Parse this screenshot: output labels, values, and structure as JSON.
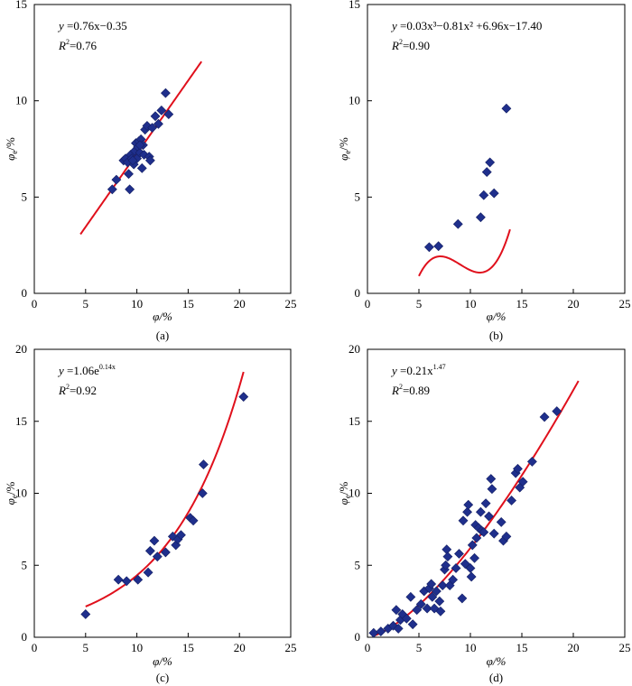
{
  "chart_data": [
    {
      "id": "a",
      "type": "scatter",
      "caption": "(a)",
      "xlabel": "φ/%",
      "ylabel": "φ",
      "ylabel_sub": "e",
      "ylabel_suffix": "/%",
      "xlim": [
        0,
        25
      ],
      "ylim": [
        0,
        15
      ],
      "xticks": [
        0,
        5,
        10,
        15,
        20,
        25
      ],
      "yticks": [
        0,
        5,
        10,
        15
      ],
      "equation": {
        "lhs": "y",
        "rhs": " =0.76x−0.35",
        "r2_label": "R",
        "r2_exp": "2",
        "r2_value": "=0.76"
      },
      "fit": {
        "kind": "linear",
        "a": 0.76,
        "b": -0.35,
        "x_range": [
          4.5,
          16.3
        ]
      },
      "points": [
        [
          7.6,
          5.4
        ],
        [
          8.0,
          5.9
        ],
        [
          8.7,
          6.9
        ],
        [
          8.9,
          7.0
        ],
        [
          9.1,
          6.8
        ],
        [
          9.2,
          6.2
        ],
        [
          9.3,
          5.4
        ],
        [
          9.4,
          7.2
        ],
        [
          9.5,
          7.0
        ],
        [
          9.7,
          6.7
        ],
        [
          9.8,
          7.4
        ],
        [
          9.9,
          7.8
        ],
        [
          10.0,
          7.0
        ],
        [
          10.1,
          7.6
        ],
        [
          10.2,
          7.9
        ],
        [
          10.3,
          7.3
        ],
        [
          10.4,
          8.0
        ],
        [
          10.5,
          6.5
        ],
        [
          10.6,
          7.7
        ],
        [
          10.7,
          7.2
        ],
        [
          10.8,
          8.5
        ],
        [
          11.0,
          8.7
        ],
        [
          11.2,
          7.1
        ],
        [
          11.3,
          6.9
        ],
        [
          11.5,
          8.6
        ],
        [
          11.8,
          9.2
        ],
        [
          12.1,
          8.8
        ],
        [
          12.4,
          9.5
        ],
        [
          12.8,
          10.4
        ],
        [
          13.1,
          9.3
        ],
        [
          10.3,
          7.7
        ],
        [
          9.6,
          6.9
        ]
      ]
    },
    {
      "id": "b",
      "type": "scatter",
      "caption": "(b)",
      "xlabel": "φ/%",
      "ylabel": "φ",
      "ylabel_sub": "e",
      "ylabel_suffix": "/%",
      "xlim": [
        0,
        25
      ],
      "ylim": [
        0,
        15
      ],
      "xticks": [
        0,
        5,
        10,
        15,
        20,
        25
      ],
      "yticks": [
        0,
        5,
        10,
        15
      ],
      "equation": {
        "lhs": "y",
        "rhs": " =0.03x³−0.81x² +6.96x−17.40",
        "r2_label": "R",
        "r2_exp": "2",
        "r2_value": "=0.90"
      },
      "fit": {
        "kind": "cubic",
        "c3": 0.03,
        "c2": -0.81,
        "c1": 6.96,
        "c0": -17.4,
        "x_range": [
          5.0,
          13.85
        ]
      },
      "points": [
        [
          6.0,
          2.4
        ],
        [
          6.9,
          2.45
        ],
        [
          8.8,
          3.6
        ],
        [
          11.0,
          3.95
        ],
        [
          11.3,
          5.1
        ],
        [
          11.6,
          6.3
        ],
        [
          11.9,
          6.8
        ],
        [
          12.3,
          5.2
        ],
        [
          13.5,
          9.6
        ]
      ]
    },
    {
      "id": "c",
      "type": "scatter",
      "caption": "(c)",
      "xlabel": "φ/%",
      "ylabel": "φ",
      "ylabel_sub": "e",
      "ylabel_suffix": "/%",
      "xlim": [
        0,
        25
      ],
      "ylim": [
        0,
        20
      ],
      "xticks": [
        0,
        5,
        10,
        15,
        20,
        25
      ],
      "yticks": [
        0,
        5,
        10,
        15,
        20
      ],
      "equation": {
        "lhs": "y",
        "rhs": " =1.06e",
        "rhs_exp": "0.14x",
        "r2_label": "R",
        "r2_exp": "2",
        "r2_value": "=0.92"
      },
      "fit": {
        "kind": "exponential",
        "a": 1.06,
        "b": 0.14,
        "x_range": [
          5.0,
          20.4
        ]
      },
      "points": [
        [
          5.0,
          1.6
        ],
        [
          8.2,
          4.0
        ],
        [
          9.0,
          3.9
        ],
        [
          10.1,
          4.0
        ],
        [
          11.1,
          4.5
        ],
        [
          11.3,
          6.0
        ],
        [
          11.7,
          6.7
        ],
        [
          12.0,
          5.6
        ],
        [
          12.8,
          5.9
        ],
        [
          13.5,
          7.0
        ],
        [
          13.8,
          6.4
        ],
        [
          14.0,
          6.8
        ],
        [
          14.3,
          7.1
        ],
        [
          15.2,
          8.3
        ],
        [
          15.5,
          8.1
        ],
        [
          16.4,
          10.0
        ],
        [
          16.5,
          12.0
        ],
        [
          20.4,
          16.7
        ]
      ]
    },
    {
      "id": "d",
      "type": "scatter",
      "caption": "(d)",
      "xlabel": "φ/%",
      "ylabel": "φ",
      "ylabel_sub": "e",
      "ylabel_suffix": "/%",
      "xlim": [
        0,
        25
      ],
      "ylim": [
        0,
        20
      ],
      "xticks": [
        0,
        5,
        10,
        15,
        20,
        25
      ],
      "yticks": [
        0,
        5,
        10,
        15,
        20
      ],
      "equation": {
        "lhs": "y",
        "rhs": " =0.21x",
        "rhs_exp": "1.47",
        "r2_label": "R",
        "r2_exp": "2",
        "r2_value": "=0.89"
      },
      "fit": {
        "kind": "power",
        "a": 0.21,
        "b": 1.47,
        "x_range": [
          0.5,
          20.5
        ]
      },
      "points": [
        [
          0.6,
          0.3
        ],
        [
          1.3,
          0.4
        ],
        [
          2.0,
          0.6
        ],
        [
          2.5,
          0.8
        ],
        [
          2.8,
          1.9
        ],
        [
          3.0,
          0.6
        ],
        [
          3.2,
          1.2
        ],
        [
          3.4,
          1.6
        ],
        [
          3.8,
          1.3
        ],
        [
          4.2,
          2.8
        ],
        [
          4.4,
          0.9
        ],
        [
          4.8,
          1.9
        ],
        [
          5.2,
          2.3
        ],
        [
          5.5,
          3.2
        ],
        [
          5.8,
          2.0
        ],
        [
          6.0,
          3.4
        ],
        [
          6.2,
          3.7
        ],
        [
          6.3,
          2.8
        ],
        [
          6.5,
          2.0
        ],
        [
          6.7,
          3.2
        ],
        [
          7.0,
          2.5
        ],
        [
          7.1,
          1.8
        ],
        [
          7.3,
          3.6
        ],
        [
          7.5,
          4.7
        ],
        [
          7.6,
          5.0
        ],
        [
          7.7,
          6.1
        ],
        [
          7.8,
          5.6
        ],
        [
          8.0,
          3.6
        ],
        [
          8.3,
          4.0
        ],
        [
          8.6,
          4.8
        ],
        [
          8.9,
          5.8
        ],
        [
          9.2,
          2.7
        ],
        [
          9.3,
          8.1
        ],
        [
          9.5,
          5.1
        ],
        [
          9.7,
          8.7
        ],
        [
          9.8,
          9.2
        ],
        [
          10.0,
          4.8
        ],
        [
          10.1,
          4.2
        ],
        [
          10.2,
          6.4
        ],
        [
          10.4,
          5.5
        ],
        [
          10.5,
          7.8
        ],
        [
          10.6,
          6.9
        ],
        [
          10.8,
          7.6
        ],
        [
          11.0,
          8.7
        ],
        [
          11.1,
          7.4
        ],
        [
          11.3,
          7.3
        ],
        [
          11.5,
          9.3
        ],
        [
          11.8,
          8.4
        ],
        [
          12.0,
          11.0
        ],
        [
          12.1,
          10.3
        ],
        [
          12.3,
          7.2
        ],
        [
          13.0,
          8.0
        ],
        [
          13.2,
          6.7
        ],
        [
          13.5,
          7.0
        ],
        [
          14.0,
          9.5
        ],
        [
          14.4,
          11.4
        ],
        [
          14.6,
          11.7
        ],
        [
          14.8,
          10.4
        ],
        [
          15.1,
          10.8
        ],
        [
          16.0,
          12.2
        ],
        [
          17.2,
          15.3
        ],
        [
          18.4,
          15.7
        ]
      ]
    }
  ]
}
